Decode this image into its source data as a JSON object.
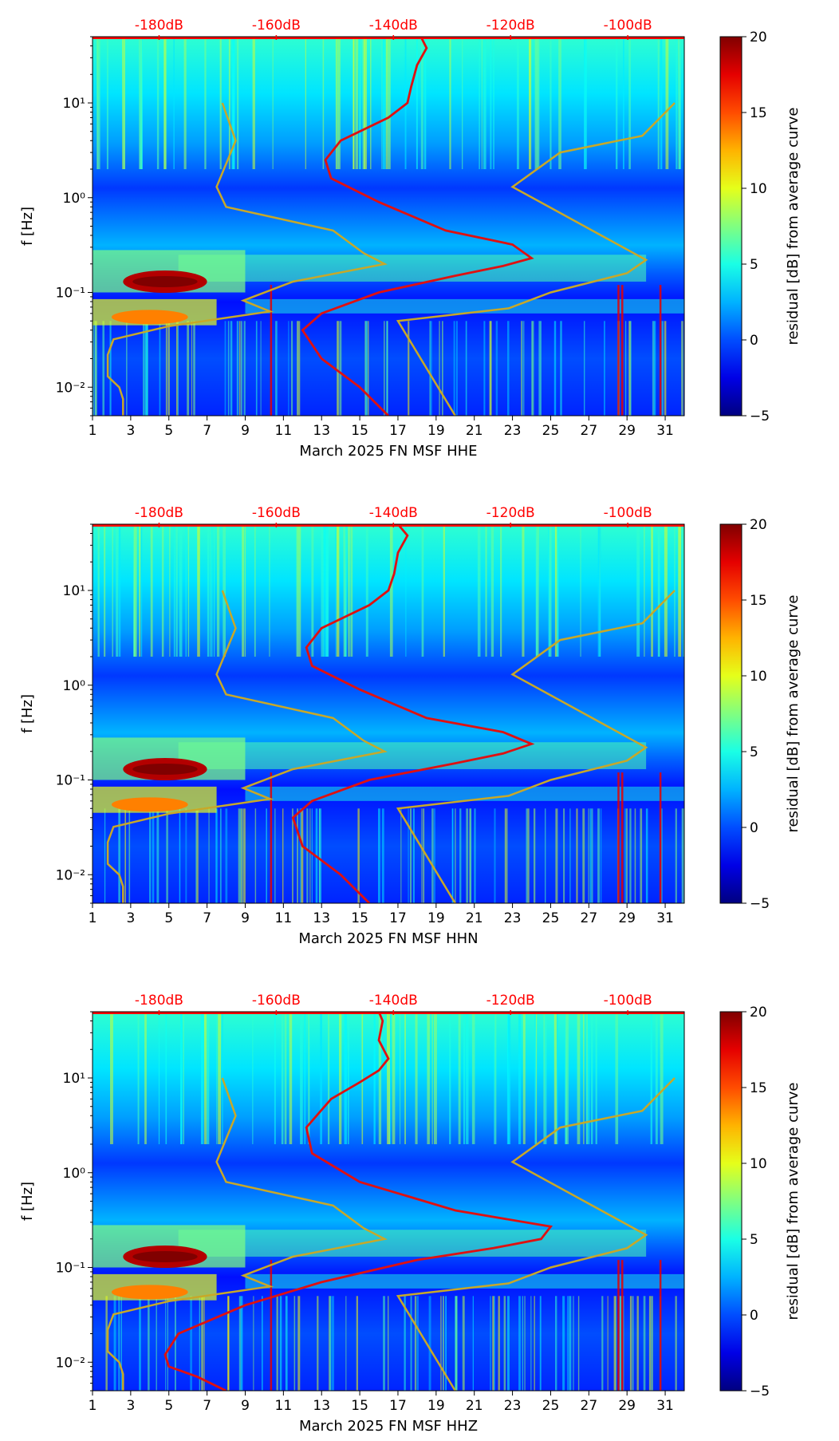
{
  "colors": {
    "background": "#ffffff",
    "axis": "#000000",
    "noise_model": "#c8a828",
    "psd_curve": "#e01010",
    "db_scale": "#ff0000"
  },
  "chart_data": [
    {
      "type": "heatmap",
      "xlabel": "March 2025 FN MSF  HHE",
      "ylabel": "f [Hz]",
      "x_ticks": [
        "1",
        "3",
        "5",
        "7",
        "9",
        "11",
        "13",
        "15",
        "17",
        "19",
        "21",
        "23",
        "25",
        "27",
        "29",
        "31"
      ],
      "x_range": [
        1,
        32
      ],
      "y_range_hz": [
        0.005,
        50
      ],
      "y_tick_labels": [
        "10⁻²",
        "10⁻¹",
        "10⁰",
        "10¹"
      ],
      "y_tick_values": [
        0.01,
        0.1,
        1,
        10
      ],
      "top_axis_labels": [
        "-180dB",
        "-160dB",
        "-140dB",
        "-120dB",
        "-100dB"
      ],
      "top_axis_db": [
        -180,
        -160,
        -140,
        -120,
        -100
      ],
      "colorbar": {
        "label": "residual [dB] from average curve",
        "min": -5,
        "max": 20,
        "ticks": [
          "20",
          "15",
          "10",
          "5",
          "0",
          "−5"
        ],
        "tick_values": [
          20,
          15,
          10,
          5,
          0,
          -5
        ]
      },
      "noise_model_low": [
        [
          2.6,
          0.005
        ],
        [
          2.6,
          0.0075
        ],
        [
          2.4,
          0.01
        ],
        [
          1.8,
          0.013
        ],
        [
          1.8,
          0.022
        ],
        [
          2.1,
          0.032
        ],
        [
          5.0,
          0.044
        ],
        [
          10.3,
          0.063
        ],
        [
          8.9,
          0.082
        ],
        [
          11.5,
          0.13
        ],
        [
          16.3,
          0.2
        ],
        [
          15.2,
          0.26
        ],
        [
          13.6,
          0.45
        ],
        [
          8.0,
          0.8
        ],
        [
          7.5,
          1.3
        ],
        [
          8.5,
          4
        ],
        [
          7.8,
          10
        ]
      ],
      "noise_model_high": [
        [
          20.0,
          0.005
        ],
        [
          17.0,
          0.05
        ],
        [
          22.8,
          0.068
        ],
        [
          25.0,
          0.1
        ],
        [
          29.0,
          0.16
        ],
        [
          30.0,
          0.22
        ],
        [
          23.0,
          1.3
        ],
        [
          25.5,
          3
        ],
        [
          29.8,
          4.5
        ],
        [
          31.5,
          10
        ]
      ],
      "psd_curve": [
        [
          16.5,
          0.005
        ],
        [
          15.0,
          0.01
        ],
        [
          13.0,
          0.02
        ],
        [
          12.0,
          0.04
        ],
        [
          13.0,
          0.06
        ],
        [
          16.0,
          0.1
        ],
        [
          20.0,
          0.15
        ],
        [
          22.5,
          0.19
        ],
        [
          24.0,
          0.23
        ],
        [
          23.0,
          0.32
        ],
        [
          19.5,
          0.45
        ],
        [
          16.0,
          0.9
        ],
        [
          13.5,
          1.6
        ],
        [
          13.2,
          2.5
        ],
        [
          14.0,
          4
        ],
        [
          16.5,
          7
        ],
        [
          17.5,
          10
        ],
        [
          17.7,
          15
        ],
        [
          18.0,
          25
        ],
        [
          18.5,
          38
        ],
        [
          18.2,
          50
        ]
      ]
    },
    {
      "type": "heatmap",
      "xlabel": "March 2025 FN MSF  HHN",
      "ylabel": "f [Hz]",
      "x_ticks": [
        "1",
        "3",
        "5",
        "7",
        "9",
        "11",
        "13",
        "15",
        "17",
        "19",
        "21",
        "23",
        "25",
        "27",
        "29",
        "31"
      ],
      "x_range": [
        1,
        32
      ],
      "y_range_hz": [
        0.005,
        50
      ],
      "y_tick_labels": [
        "10⁻²",
        "10⁻¹",
        "10⁰",
        "10¹"
      ],
      "y_tick_values": [
        0.01,
        0.1,
        1,
        10
      ],
      "top_axis_labels": [
        "-180dB",
        "-160dB",
        "-140dB",
        "-120dB",
        "-100dB"
      ],
      "top_axis_db": [
        -180,
        -160,
        -140,
        -120,
        -100
      ],
      "colorbar": {
        "label": "residual [dB] from average curve",
        "min": -5,
        "max": 20,
        "ticks": [
          "20",
          "15",
          "10",
          "5",
          "0",
          "−5"
        ],
        "tick_values": [
          20,
          15,
          10,
          5,
          0,
          -5
        ]
      },
      "noise_model_low": [
        [
          2.6,
          0.005
        ],
        [
          2.6,
          0.0075
        ],
        [
          2.4,
          0.01
        ],
        [
          1.8,
          0.013
        ],
        [
          1.8,
          0.022
        ],
        [
          2.1,
          0.032
        ],
        [
          5.0,
          0.044
        ],
        [
          10.3,
          0.063
        ],
        [
          8.9,
          0.082
        ],
        [
          11.5,
          0.13
        ],
        [
          16.3,
          0.2
        ],
        [
          15.2,
          0.26
        ],
        [
          13.6,
          0.45
        ],
        [
          8.0,
          0.8
        ],
        [
          7.5,
          1.3
        ],
        [
          8.5,
          4
        ],
        [
          7.8,
          10
        ]
      ],
      "noise_model_high": [
        [
          20.0,
          0.005
        ],
        [
          17.0,
          0.05
        ],
        [
          22.8,
          0.068
        ],
        [
          25.0,
          0.1
        ],
        [
          29.0,
          0.16
        ],
        [
          30.0,
          0.22
        ],
        [
          23.0,
          1.3
        ],
        [
          25.5,
          3
        ],
        [
          29.8,
          4.5
        ],
        [
          31.5,
          10
        ]
      ],
      "psd_curve": [
        [
          15.5,
          0.005
        ],
        [
          14.0,
          0.01
        ],
        [
          12.0,
          0.02
        ],
        [
          11.5,
          0.04
        ],
        [
          12.5,
          0.06
        ],
        [
          15.5,
          0.1
        ],
        [
          20.0,
          0.15
        ],
        [
          22.5,
          0.19
        ],
        [
          24.0,
          0.24
        ],
        [
          22.5,
          0.32
        ],
        [
          18.5,
          0.45
        ],
        [
          15.0,
          0.9
        ],
        [
          12.5,
          1.6
        ],
        [
          12.2,
          2.5
        ],
        [
          13.0,
          4
        ],
        [
          15.5,
          7
        ],
        [
          16.5,
          10
        ],
        [
          16.8,
          15
        ],
        [
          17.0,
          25
        ],
        [
          17.5,
          38
        ],
        [
          17.0,
          50
        ]
      ]
    },
    {
      "type": "heatmap",
      "xlabel": "March 2025 FN MSF  HHZ",
      "ylabel": "f [Hz]",
      "x_ticks": [
        "1",
        "3",
        "5",
        "7",
        "9",
        "11",
        "13",
        "15",
        "17",
        "19",
        "21",
        "23",
        "25",
        "27",
        "29",
        "31"
      ],
      "x_range": [
        1,
        32
      ],
      "y_range_hz": [
        0.005,
        50
      ],
      "y_tick_labels": [
        "10⁻²",
        "10⁻¹",
        "10⁰",
        "10¹"
      ],
      "y_tick_values": [
        0.01,
        0.1,
        1,
        10
      ],
      "top_axis_labels": [
        "-180dB",
        "-160dB",
        "-140dB",
        "-120dB",
        "-100dB"
      ],
      "top_axis_db": [
        -180,
        -160,
        -140,
        -120,
        -100
      ],
      "colorbar": {
        "label": "residual [dB] from average curve",
        "min": -5,
        "max": 20,
        "ticks": [
          "20",
          "15",
          "10",
          "5",
          "0",
          "−5"
        ],
        "tick_values": [
          20,
          15,
          10,
          5,
          0,
          -5
        ]
      },
      "noise_model_low": [
        [
          2.6,
          0.005
        ],
        [
          2.6,
          0.0075
        ],
        [
          2.4,
          0.01
        ],
        [
          1.8,
          0.013
        ],
        [
          1.8,
          0.022
        ],
        [
          2.1,
          0.032
        ],
        [
          5.0,
          0.044
        ],
        [
          10.3,
          0.063
        ],
        [
          8.9,
          0.082
        ],
        [
          11.5,
          0.13
        ],
        [
          16.3,
          0.2
        ],
        [
          15.2,
          0.26
        ],
        [
          13.6,
          0.45
        ],
        [
          8.0,
          0.8
        ],
        [
          7.5,
          1.3
        ],
        [
          8.5,
          4
        ],
        [
          7.8,
          10
        ]
      ],
      "noise_model_high": [
        [
          20.0,
          0.005
        ],
        [
          17.0,
          0.05
        ],
        [
          22.8,
          0.068
        ],
        [
          25.0,
          0.1
        ],
        [
          29.0,
          0.16
        ],
        [
          30.0,
          0.22
        ],
        [
          23.0,
          1.3
        ],
        [
          25.5,
          3
        ],
        [
          29.8,
          4.5
        ],
        [
          31.5,
          10
        ]
      ],
      "psd_curve": [
        [
          8.0,
          0.005
        ],
        [
          6.5,
          0.007
        ],
        [
          5.0,
          0.009
        ],
        [
          4.8,
          0.012
        ],
        [
          5.5,
          0.02
        ],
        [
          9.0,
          0.04
        ],
        [
          13.0,
          0.07
        ],
        [
          18.0,
          0.12
        ],
        [
          22.0,
          0.16
        ],
        [
          24.5,
          0.2
        ],
        [
          25.0,
          0.27
        ],
        [
          20.0,
          0.4
        ],
        [
          15.0,
          0.8
        ],
        [
          12.5,
          1.6
        ],
        [
          12.2,
          3
        ],
        [
          13.5,
          6
        ],
        [
          15.0,
          9
        ],
        [
          16.0,
          12
        ],
        [
          16.5,
          16
        ],
        [
          16.0,
          25
        ],
        [
          16.2,
          40
        ],
        [
          16.0,
          50
        ]
      ]
    }
  ]
}
